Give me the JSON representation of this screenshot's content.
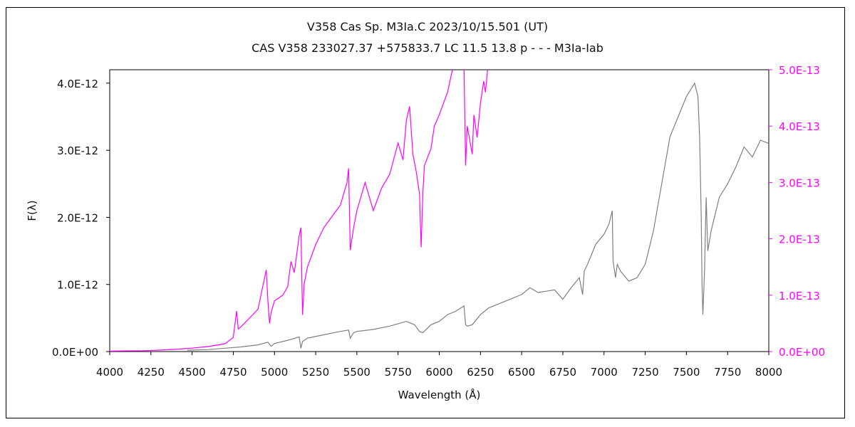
{
  "chart_data": {
    "type": "line",
    "title": "V358 Cas    Sp. M3Ia.C   2023/10/15.501 (UT)",
    "subtitle": "CAS V358 233027.37 +575833.7 LC 11.5 13.8 p - - - M3Ia-Iab",
    "xlabel": "Wavelength (Å)",
    "ylabel": "F(λ)",
    "xlim": [
      4000,
      8000
    ],
    "ylim_left": [
      0,
      4.2e-12
    ],
    "ylim_right": [
      0,
      5e-13
    ],
    "x_ticks": [
      "4000",
      "4250",
      "4500",
      "4750",
      "5000",
      "5250",
      "5500",
      "5750",
      "6000",
      "6250",
      "6500",
      "6750",
      "7000",
      "7250",
      "7500",
      "7750",
      "8000"
    ],
    "y_left_ticks": [
      {
        "value": 0,
        "label": "0.0E+00"
      },
      {
        "value": 1e-12,
        "label": "1.0E-12"
      },
      {
        "value": 2e-12,
        "label": "2.0E-12"
      },
      {
        "value": 3e-12,
        "label": "3.0E-12"
      },
      {
        "value": 4e-12,
        "label": "4.0E-12"
      }
    ],
    "y_right_ticks": [
      {
        "value": 0,
        "label": "0.0E+00"
      },
      {
        "value": 1e-13,
        "label": "1.0E-13"
      },
      {
        "value": 2e-13,
        "label": "2.0E-13"
      },
      {
        "value": 3e-13,
        "label": "3.0E-13"
      },
      {
        "value": 4e-13,
        "label": "4.0E-13"
      },
      {
        "value": 5e-13,
        "label": "5.0E-13"
      }
    ],
    "colors": {
      "left_series": "#808080",
      "right_series": "#ff00ff",
      "right_axis": "#ff00ff",
      "axis": "#000000"
    },
    "series": [
      {
        "axis": "left",
        "x": [
          4470,
          4600,
          4700,
          4800,
          4900,
          4960,
          4980,
          5000,
          5100,
          5150,
          5160,
          5170,
          5200,
          5300,
          5400,
          5450,
          5460,
          5480,
          5500,
          5600,
          5700,
          5800,
          5850,
          5880,
          5900,
          5950,
          6000,
          6050,
          6100,
          6150,
          6160,
          6170,
          6200,
          6250,
          6300,
          6400,
          6500,
          6550,
          6600,
          6700,
          6750,
          6800,
          6850,
          6870,
          6880,
          6900,
          6950,
          7000,
          7030,
          7050,
          7055,
          7070,
          7080,
          7100,
          7150,
          7200,
          7250,
          7300,
          7350,
          7400,
          7450,
          7500,
          7550,
          7570,
          7580,
          7590,
          7595,
          7600,
          7610,
          7620,
          7630,
          7650,
          7700,
          7750,
          7800,
          7850,
          7900,
          7950,
          8000
        ],
        "y": [
          2e-14,
          3e-14,
          5e-14,
          7e-14,
          1e-13,
          1.4e-13,
          8e-14,
          1.2e-13,
          1.8e-13,
          2.2e-13,
          5e-14,
          1.5e-13,
          2e-13,
          2.5e-13,
          3e-13,
          3.2e-13,
          2e-13,
          2.8e-13,
          3e-13,
          3.3e-13,
          3.8e-13,
          4.5e-13,
          4e-13,
          3e-13,
          2.8e-13,
          4e-13,
          4.5e-13,
          5.5e-13,
          6e-13,
          6.8e-13,
          4e-13,
          3.8e-13,
          4e-13,
          5.5e-13,
          6.5e-13,
          7.5e-13,
          8.5e-13,
          9.5e-13,
          8.8e-13,
          9.2e-13,
          7.8e-13,
          9.5e-13,
          1.1e-12,
          8.5e-13,
          1.2e-12,
          1.3e-12,
          1.6e-12,
          1.75e-12,
          1.9e-12,
          2.1e-12,
          1.35e-12,
          1.1e-12,
          1.3e-12,
          1.2e-12,
          1.05e-12,
          1.1e-12,
          1.3e-12,
          1.8e-12,
          2.5e-12,
          3.2e-12,
          3.5e-12,
          3.8e-12,
          4e-12,
          3.8e-12,
          3.2e-12,
          2e-12,
          1e-12,
          5.5e-13,
          1.2e-12,
          2.3e-12,
          1.5e-12,
          1.8e-12,
          2.3e-12,
          2.5e-12,
          2.75e-12,
          3.05e-12,
          2.9e-12,
          3.15e-12,
          3.1e-12
        ]
      },
      {
        "axis": "right",
        "x": [
          4000,
          4100,
          4200,
          4300,
          4400,
          4500,
          4600,
          4700,
          4750,
          4770,
          4780,
          4800,
          4850,
          4900,
          4950,
          4960,
          4970,
          4980,
          5000,
          5050,
          5080,
          5100,
          5120,
          5150,
          5160,
          5170,
          5180,
          5200,
          5250,
          5300,
          5350,
          5400,
          5440,
          5450,
          5460,
          5480,
          5500,
          5550,
          5600,
          5650,
          5700,
          5750,
          5780,
          5800,
          5820,
          5840,
          5860,
          5880,
          5890,
          5900,
          5910,
          5950,
          5970,
          6000,
          6050,
          6080,
          6100,
          6140,
          6150,
          6160,
          6170,
          6200,
          6210,
          6230,
          6250,
          6270,
          6280,
          6300
        ],
        "y": [
          8e-16,
          1.2e-15,
          1.5e-15,
          2.5e-15,
          4e-15,
          6e-15,
          9e-15,
          1.4e-14,
          2.5e-14,
          7.2e-14,
          4e-14,
          4.5e-14,
          6e-14,
          7.5e-14,
          1.45e-13,
          9e-14,
          5e-14,
          7e-14,
          9e-14,
          1e-13,
          1.15e-13,
          1.6e-13,
          1.4e-13,
          2.05e-13,
          2.2e-13,
          6.5e-14,
          1.2e-13,
          1.5e-13,
          1.9e-13,
          2.2e-13,
          2.4e-13,
          2.6e-13,
          3e-13,
          3.25e-13,
          1.8e-13,
          2.2e-13,
          2.5e-13,
          3e-13,
          2.5e-13,
          2.9e-13,
          3.15e-13,
          3.7e-13,
          3.4e-13,
          4.1e-13,
          4.35e-13,
          3.5e-13,
          3.2e-13,
          2.8e-13,
          1.85e-13,
          2.8e-13,
          3.3e-13,
          3.6e-13,
          4e-13,
          4.2e-13,
          4.6e-13,
          5e-13,
          5.3e-13,
          5.5e-13,
          5.1e-13,
          3.3e-13,
          4e-13,
          3.5e-13,
          4.2e-13,
          3.8e-13,
          4.4e-13,
          4.8e-13,
          4.6e-13,
          5.2e-13
        ]
      }
    ]
  }
}
